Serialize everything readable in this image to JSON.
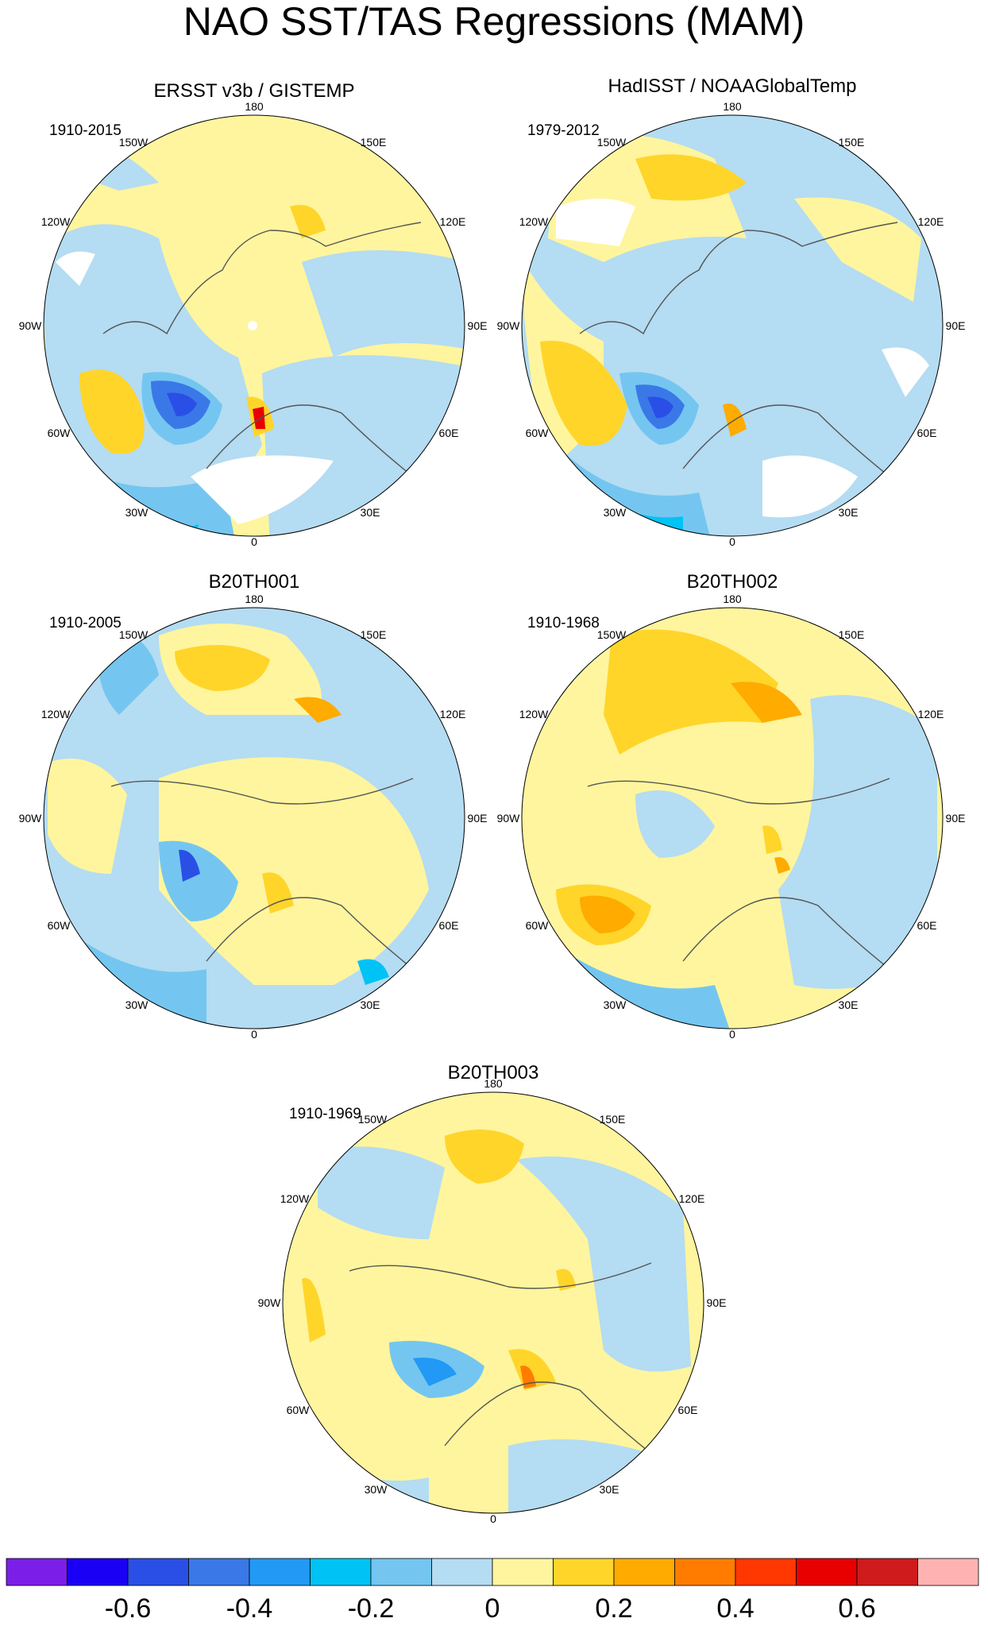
{
  "figure": {
    "title": "NAO SST/TAS Regressions (MAM)",
    "projection": "north-polar-stereographic",
    "longitude_labels": [
      "180",
      "150E",
      "120E",
      "90E",
      "60E",
      "30E",
      "0",
      "30W",
      "60W",
      "90W",
      "120W",
      "150W"
    ]
  },
  "panels": [
    {
      "id": "obs1",
      "title": "ERSST v3b / GISTEMP",
      "period": "1910-2015",
      "pattern": {
        "base": "yellow",
        "cold": "strong",
        "warm": "moderate",
        "coverage": "partial"
      }
    },
    {
      "id": "obs2",
      "title": "HadISST / NOAAGlobalTemp",
      "period": "1979-2012",
      "pattern": {
        "base": "blue",
        "cold": "strong",
        "warm": "moderate",
        "coverage": "patchy"
      }
    },
    {
      "id": "b1",
      "title": "B20TH001",
      "period": "1910-2005",
      "pattern": {
        "base": "yellow",
        "cold": "moderate",
        "warm": "weak",
        "coverage": "full"
      }
    },
    {
      "id": "b2",
      "title": "B20TH002",
      "period": "1910-1968",
      "pattern": {
        "base": "yellow",
        "cold": "weak",
        "warm": "strong",
        "coverage": "full"
      }
    },
    {
      "id": "b3",
      "title": "B20TH003",
      "period": "1910-1969",
      "pattern": {
        "base": "yellow",
        "cold": "moderate",
        "warm": "weak",
        "coverage": "full"
      }
    }
  ],
  "colorbar": {
    "levels": [
      "-0.6",
      "-0.4",
      "-0.2",
      "0",
      "0.2",
      "0.4",
      "0.6"
    ],
    "colors": [
      "#7b1fe8",
      "#1a00f5",
      "#2a4fe6",
      "#3a78e8",
      "#2199f5",
      "#00c3f5",
      "#74c6f0",
      "#b4dcf2",
      "#fff59e",
      "#ffd52a",
      "#ffab00",
      "#ff7c00",
      "#ff3700",
      "#e80000",
      "#cf1b1b",
      "#ffb2b2"
    ]
  },
  "colors": {
    "coast": "#555555",
    "blue_base": "#b4dcf2",
    "yellow_base": "#fff59e",
    "mid_blue": "#74c6f0",
    "cyan": "#00c3f5",
    "deep_blue": "#3a5fe6",
    "gold": "#ffd52a",
    "orange": "#ffab00",
    "red": "#e80000"
  }
}
